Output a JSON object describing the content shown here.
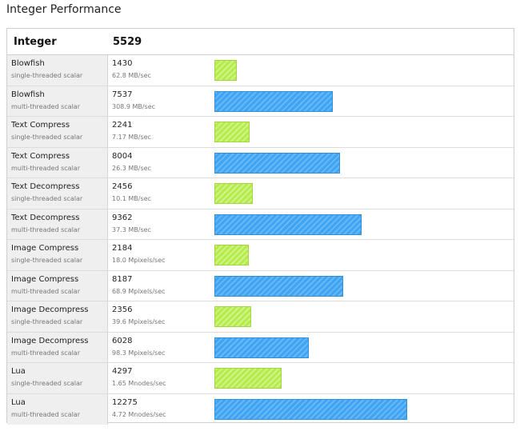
{
  "page": {
    "title": "Integer Performance"
  },
  "header": {
    "label": "Integer",
    "score": "5529"
  },
  "colors": {
    "single_threaded": "#b5ec4a",
    "multi_threaded": "#3fa4f3"
  },
  "chart_data": {
    "type": "bar",
    "orientation": "horizontal",
    "title": "Integer Performance",
    "overall_score": 5529,
    "scale_max": 12275,
    "rows": [
      {
        "name": "Blowfish",
        "mode": "single-threaded scalar",
        "score": 1430,
        "rate": "62.8 MB/sec",
        "kind": "single"
      },
      {
        "name": "Blowfish",
        "mode": "multi-threaded scalar",
        "score": 7537,
        "rate": "308.9 MB/sec",
        "kind": "multi"
      },
      {
        "name": "Text Compress",
        "mode": "single-threaded scalar",
        "score": 2241,
        "rate": "7.17 MB/sec",
        "kind": "single"
      },
      {
        "name": "Text Compress",
        "mode": "multi-threaded scalar",
        "score": 8004,
        "rate": "26.3 MB/sec",
        "kind": "multi"
      },
      {
        "name": "Text Decompress",
        "mode": "single-threaded scalar",
        "score": 2456,
        "rate": "10.1 MB/sec",
        "kind": "single"
      },
      {
        "name": "Text Decompress",
        "mode": "multi-threaded scalar",
        "score": 9362,
        "rate": "37.3 MB/sec",
        "kind": "multi"
      },
      {
        "name": "Image Compress",
        "mode": "single-threaded scalar",
        "score": 2184,
        "rate": "18.0 Mpixels/sec",
        "kind": "single"
      },
      {
        "name": "Image Compress",
        "mode": "multi-threaded scalar",
        "score": 8187,
        "rate": "68.9 Mpixels/sec",
        "kind": "multi"
      },
      {
        "name": "Image Decompress",
        "mode": "single-threaded scalar",
        "score": 2356,
        "rate": "39.6 Mpixels/sec",
        "kind": "single"
      },
      {
        "name": "Image Decompress",
        "mode": "multi-threaded scalar",
        "score": 6028,
        "rate": "98.3 Mpixels/sec",
        "kind": "multi"
      },
      {
        "name": "Lua",
        "mode": "single-threaded scalar",
        "score": 4297,
        "rate": "1.65 Mnodes/sec",
        "kind": "single"
      },
      {
        "name": "Lua",
        "mode": "multi-threaded scalar",
        "score": 12275,
        "rate": "4.72 Mnodes/sec",
        "kind": "multi"
      }
    ]
  }
}
